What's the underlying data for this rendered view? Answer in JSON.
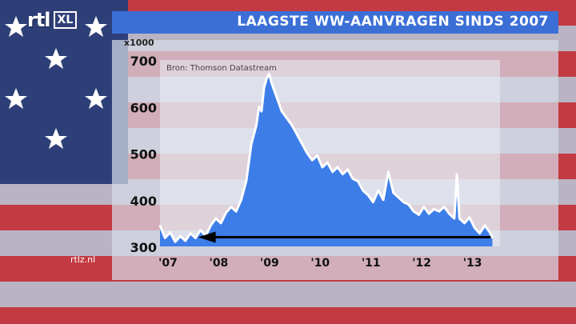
{
  "channel": {
    "logo": "rtl",
    "logo_badge": "XL",
    "url": "rtlz.nl"
  },
  "colors": {
    "title_bar": "#3b6fd6",
    "area_fill": "#3d7de8",
    "line": "#ffffff",
    "arrow": "#000000"
  },
  "chart_data": {
    "type": "area",
    "title": "LAAGSTE WW-AANVRAGEN SINDS 2007",
    "source": "Bron: Thomson Datastream",
    "yunit": "x1000",
    "ylim": [
      300,
      700
    ],
    "yticks": [
      300,
      400,
      500,
      600,
      700
    ],
    "xticks": [
      {
        "label": "'07",
        "year": 2007
      },
      {
        "label": "'08",
        "year": 2008
      },
      {
        "label": "'09",
        "year": 2009
      },
      {
        "label": "'10",
        "year": 2010
      },
      {
        "label": "'11",
        "year": 2011
      },
      {
        "label": "'12",
        "year": 2012
      },
      {
        "label": "'13",
        "year": 2013
      }
    ],
    "grid": false,
    "annotation": "arrow from latest value back to 2007 level at ~318",
    "series": [
      {
        "values": [
          [
            2007.0,
            345
          ],
          [
            2007.1,
            318
          ],
          [
            2007.2,
            330
          ],
          [
            2007.3,
            310
          ],
          [
            2007.4,
            322
          ],
          [
            2007.5,
            312
          ],
          [
            2007.6,
            328
          ],
          [
            2007.7,
            318
          ],
          [
            2007.8,
            335
          ],
          [
            2007.9,
            322
          ],
          [
            2008.0,
            345
          ],
          [
            2008.1,
            360
          ],
          [
            2008.2,
            350
          ],
          [
            2008.3,
            372
          ],
          [
            2008.4,
            385
          ],
          [
            2008.5,
            375
          ],
          [
            2008.6,
            400
          ],
          [
            2008.7,
            440
          ],
          [
            2008.8,
            520
          ],
          [
            2008.9,
            560
          ],
          [
            2008.95,
            600
          ],
          [
            2009.0,
            590
          ],
          [
            2009.05,
            640
          ],
          [
            2009.1,
            660
          ],
          [
            2009.15,
            670
          ],
          [
            2009.2,
            650
          ],
          [
            2009.3,
            620
          ],
          [
            2009.4,
            590
          ],
          [
            2009.5,
            575
          ],
          [
            2009.6,
            560
          ],
          [
            2009.7,
            540
          ],
          [
            2009.8,
            520
          ],
          [
            2009.9,
            500
          ],
          [
            2010.0,
            485
          ],
          [
            2010.1,
            495
          ],
          [
            2010.2,
            470
          ],
          [
            2010.3,
            480
          ],
          [
            2010.4,
            460
          ],
          [
            2010.5,
            470
          ],
          [
            2010.6,
            455
          ],
          [
            2010.7,
            465
          ],
          [
            2010.8,
            445
          ],
          [
            2010.9,
            440
          ],
          [
            2011.0,
            420
          ],
          [
            2011.1,
            410
          ],
          [
            2011.2,
            395
          ],
          [
            2011.3,
            420
          ],
          [
            2011.4,
            400
          ],
          [
            2011.5,
            460
          ],
          [
            2011.6,
            415
          ],
          [
            2011.7,
            405
          ],
          [
            2011.8,
            395
          ],
          [
            2011.9,
            390
          ],
          [
            2012.0,
            375
          ],
          [
            2012.1,
            368
          ],
          [
            2012.2,
            385
          ],
          [
            2012.3,
            370
          ],
          [
            2012.4,
            380
          ],
          [
            2012.5,
            375
          ],
          [
            2012.6,
            385
          ],
          [
            2012.7,
            370
          ],
          [
            2012.8,
            360
          ],
          [
            2012.85,
            455
          ],
          [
            2012.9,
            360
          ],
          [
            2013.0,
            350
          ],
          [
            2013.1,
            362
          ],
          [
            2013.2,
            340
          ],
          [
            2013.3,
            328
          ],
          [
            2013.4,
            345
          ],
          [
            2013.5,
            330
          ],
          [
            2013.55,
            318
          ]
        ]
      }
    ]
  }
}
